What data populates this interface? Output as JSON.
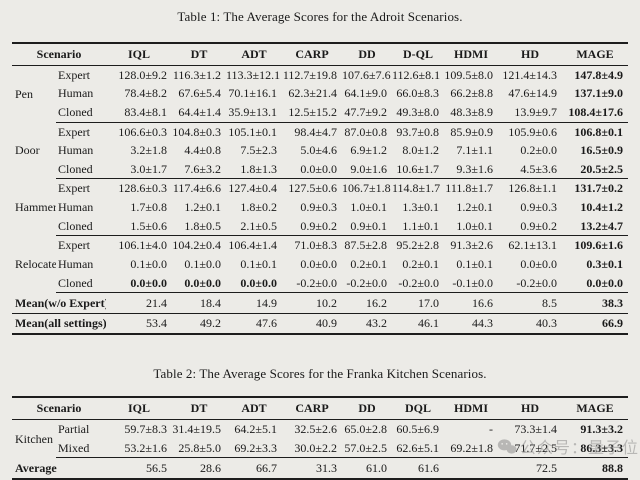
{
  "colors": {
    "background": "#ecebe7",
    "text": "#1a1a1a",
    "rule": "#1d1d1d",
    "watermark": "#8e8e8e"
  },
  "watermark": {
    "icon": "wechat-icon",
    "text": "公众号：量子位"
  },
  "table1": {
    "caption": "Table 1: The Average Scores for the Adroit Scenarios.",
    "scenario_header": "Scenario",
    "method_headers": [
      "IQL",
      "DT",
      "ADT",
      "CARP",
      "DD",
      "D-QL",
      "HDMI",
      "HD",
      "MAGE"
    ],
    "groups": [
      {
        "name": "Pen",
        "rows": [
          {
            "setting": "Expert",
            "values": [
              "128.0±9.2",
              "116.3±1.2",
              "113.3±12.1",
              "112.7±19.8",
              "107.6±7.6",
              "112.6±8.1",
              "109.5±8.0",
              "121.4±14.3",
              "147.8±4.9"
            ],
            "bold": [
              8
            ]
          },
          {
            "setting": "Human",
            "values": [
              "78.4±8.2",
              "67.6±5.4",
              "70.1±16.1",
              "62.3±21.4",
              "64.1±9.0",
              "66.0±8.3",
              "66.2±8.8",
              "47.6±14.9",
              "137.1±9.0"
            ],
            "bold": [
              8
            ]
          },
          {
            "setting": "Cloned",
            "values": [
              "83.4±8.1",
              "64.4±1.4",
              "35.9±13.1",
              "12.5±15.2",
              "47.7±9.2",
              "49.3±8.0",
              "48.3±8.9",
              "13.9±9.7",
              "108.4±17.6"
            ],
            "bold": [
              8
            ]
          }
        ]
      },
      {
        "name": "Door",
        "rows": [
          {
            "setting": "Expert",
            "values": [
              "106.6±0.3",
              "104.8±0.3",
              "105.1±0.1",
              "98.4±4.7",
              "87.0±0.8",
              "93.7±0.8",
              "85.9±0.9",
              "105.9±0.6",
              "106.8±0.1"
            ],
            "bold": [
              8
            ]
          },
          {
            "setting": "Human",
            "values": [
              "3.2±1.8",
              "4.4±0.8",
              "7.5±2.3",
              "5.0±4.6",
              "6.9±1.2",
              "8.0±1.2",
              "7.1±1.1",
              "0.2±0.0",
              "16.5±0.9"
            ],
            "bold": [
              8
            ]
          },
          {
            "setting": "Cloned",
            "values": [
              "3.0±1.7",
              "7.6±3.2",
              "1.8±1.3",
              "0.0±0.0",
              "9.0±1.6",
              "10.6±1.7",
              "9.3±1.6",
              "4.5±3.6",
              "20.5±2.5"
            ],
            "bold": [
              8
            ]
          }
        ]
      },
      {
        "name": "Hammer",
        "rows": [
          {
            "setting": "Expert",
            "values": [
              "128.6±0.3",
              "117.4±6.6",
              "127.4±0.4",
              "127.5±0.6",
              "106.7±1.8",
              "114.8±1.7",
              "111.8±1.7",
              "126.8±1.1",
              "131.7±0.2"
            ],
            "bold": [
              8
            ]
          },
          {
            "setting": "Human",
            "values": [
              "1.7±0.8",
              "1.2±0.1",
              "1.8±0.2",
              "0.9±0.3",
              "1.0±0.1",
              "1.3±0.1",
              "1.2±0.1",
              "0.9±0.3",
              "10.4±1.2"
            ],
            "bold": [
              8
            ]
          },
          {
            "setting": "Cloned",
            "values": [
              "1.5±0.6",
              "1.8±0.5",
              "2.1±0.5",
              "0.9±0.2",
              "0.9±0.1",
              "1.1±0.1",
              "1.0±0.1",
              "0.9±0.2",
              "13.2±4.7"
            ],
            "bold": [
              8
            ]
          }
        ]
      },
      {
        "name": "Relocate",
        "rows": [
          {
            "setting": "Expert",
            "values": [
              "106.1±4.0",
              "104.2±0.4",
              "106.4±1.4",
              "71.0±8.3",
              "87.5±2.8",
              "95.2±2.8",
              "91.3±2.6",
              "62.1±13.1",
              "109.6±1.6"
            ],
            "bold": [
              8
            ]
          },
          {
            "setting": "Human",
            "values": [
              "0.1±0.0",
              "0.1±0.0",
              "0.1±0.1",
              "0.0±0.0",
              "0.2±0.1",
              "0.2±0.1",
              "0.1±0.1",
              "0.0±0.0",
              "0.3±0.1"
            ],
            "bold": [
              8
            ]
          },
          {
            "setting": "Cloned",
            "values": [
              "0.0±0.0",
              "0.0±0.0",
              "0.0±0.0",
              "-0.2±0.0",
              "-0.2±0.0",
              "-0.2±0.0",
              "-0.1±0.0",
              "-0.2±0.0",
              "0.0±0.0"
            ],
            "bold": [
              0,
              1,
              2,
              8
            ]
          }
        ]
      }
    ],
    "summary_rows": [
      {
        "label": "Mean(w/o Expert)",
        "values": [
          "21.4",
          "18.4",
          "14.9",
          "10.2",
          "16.2",
          "17.0",
          "16.6",
          "8.5",
          "38.3"
        ],
        "bold": [
          8
        ]
      },
      {
        "label": "Mean(all settings)",
        "values": [
          "53.4",
          "49.2",
          "47.6",
          "40.9",
          "43.2",
          "46.1",
          "44.3",
          "40.3",
          "66.9"
        ],
        "bold": [
          8
        ]
      }
    ]
  },
  "table2": {
    "caption": "Table 2: The Average Scores for the Franka Kitchen Scenarios.",
    "scenario_header": "Scenario",
    "method_headers": [
      "IQL",
      "DT",
      "ADT",
      "CARP",
      "DD",
      "DQL",
      "HDMI",
      "HD",
      "MAGE"
    ],
    "groups": [
      {
        "name": "Kitchen",
        "rows": [
          {
            "setting": "Partial",
            "values": [
              "59.7±8.3",
              "31.4±19.5",
              "64.2±5.1",
              "32.5±2.6",
              "65.0±2.8",
              "60.5±6.9",
              "-",
              "73.3±1.4",
              "91.3±3.2"
            ],
            "bold": [
              8
            ]
          },
          {
            "setting": "Mixed",
            "values": [
              "53.2±1.6",
              "25.8±5.0",
              "69.2±3.3",
              "30.0±2.2",
              "57.0±2.5",
              "62.6±5.1",
              "69.2±1.8",
              "71.7±2.5",
              "86.3±3.3"
            ],
            "bold": [
              8
            ]
          }
        ]
      }
    ],
    "summary_rows": [
      {
        "label": "Average",
        "values": [
          "56.5",
          "28.6",
          "66.7",
          "31.3",
          "61.0",
          "61.6",
          "",
          "72.5",
          "88.8"
        ],
        "bold": [
          8
        ]
      }
    ]
  }
}
